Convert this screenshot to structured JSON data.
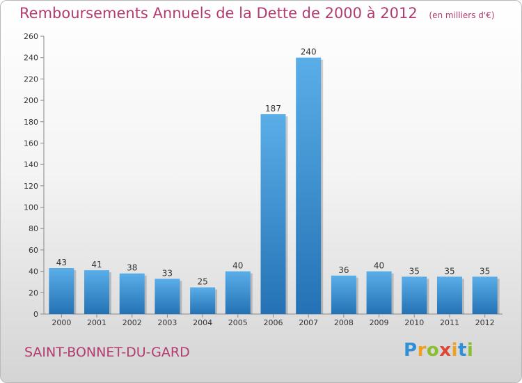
{
  "title": "Remboursements Annuels de la Dette de 2000 à 2012",
  "unit_note": "(en milliers d'€)",
  "commune": "SAINT-BONNET-DU-GARD",
  "logo": {
    "p": "P",
    "r": "r",
    "o": "o",
    "x": "x",
    "i1": "i",
    "t": "t",
    "i2": "i"
  },
  "colors": {
    "accent": "#b23c6f",
    "bar_light": "#5aaee8",
    "bar_dark": "#2472b5"
  },
  "chart_data": {
    "type": "bar",
    "title": "Remboursements Annuels de la Dette de 2000 à 2012",
    "subtitle": "(en milliers d'€)",
    "xlabel": "",
    "ylabel": "",
    "categories": [
      "2000",
      "2001",
      "2002",
      "2003",
      "2004",
      "2005",
      "2006",
      "2007",
      "2008",
      "2009",
      "2010",
      "2011",
      "2012"
    ],
    "values": [
      43,
      41,
      38,
      33,
      25,
      40,
      187,
      240,
      36,
      40,
      35,
      35,
      35
    ],
    "value_labels": [
      "43",
      "41",
      "38",
      "33",
      "25",
      "40",
      "187",
      "240",
      "36",
      "40",
      "35",
      "35",
      "35"
    ],
    "ylim": [
      0,
      260
    ],
    "yticks": [
      0,
      20,
      40,
      60,
      80,
      100,
      120,
      140,
      160,
      180,
      200,
      220,
      240,
      260
    ],
    "grid": false,
    "legend": "none"
  }
}
